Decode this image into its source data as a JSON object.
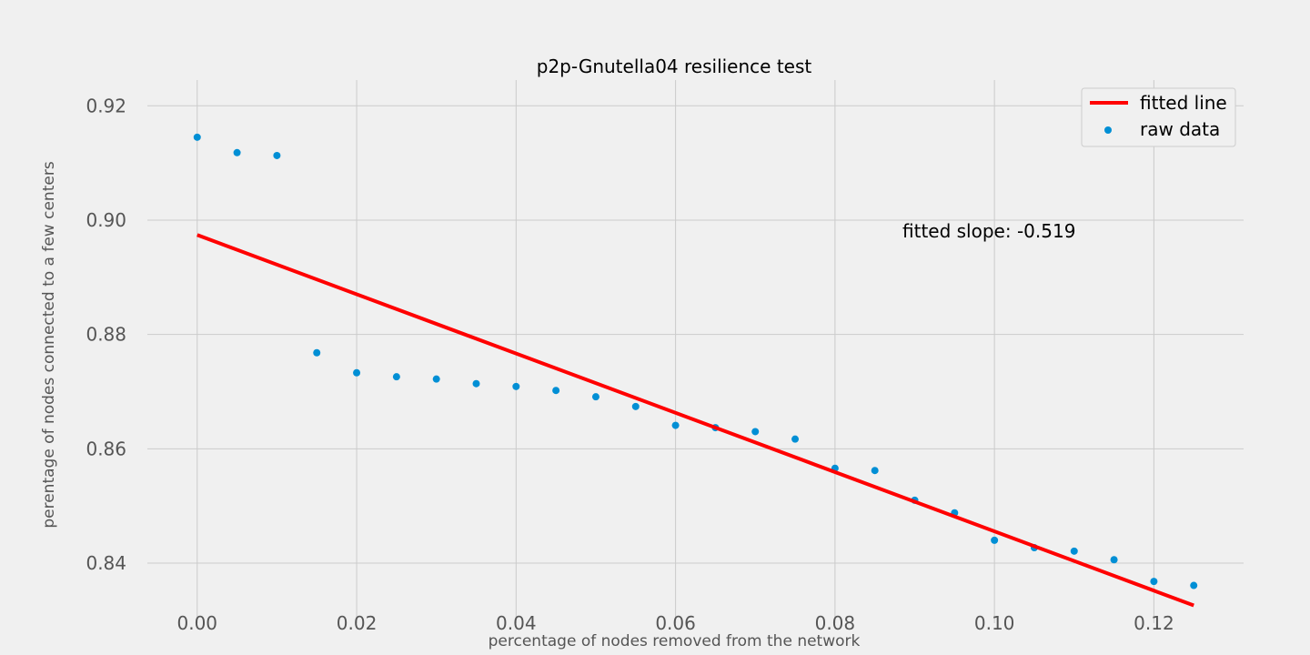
{
  "chart_data": {
    "type": "scatter",
    "title": "p2p-Gnutella04 resilience test",
    "xlabel": "percentage of nodes removed from the network",
    "ylabel": "perentage of nodes connected to a few centers",
    "xlim": [
      -0.00625,
      0.13125
    ],
    "ylim": [
      0.8295,
      0.9245
    ],
    "x_ticks": [
      0.0,
      0.02,
      0.04,
      0.06,
      0.08,
      0.1,
      0.12
    ],
    "x_tick_labels": [
      "0.00",
      "0.02",
      "0.04",
      "0.06",
      "0.08",
      "0.10",
      "0.12"
    ],
    "y_ticks": [
      0.84,
      0.86,
      0.88,
      0.9,
      0.92
    ],
    "y_tick_labels": [
      "0.84",
      "0.86",
      "0.88",
      "0.90",
      "0.92"
    ],
    "grid": true,
    "legend_position": "top-right",
    "annotation": "fitted slope: -0.519",
    "series": [
      {
        "name": "fitted line",
        "kind": "line",
        "color": "#ff0000",
        "x": [
          0.0,
          0.125
        ],
        "y": [
          0.8974,
          0.8326
        ]
      },
      {
        "name": "raw data",
        "kind": "scatter",
        "color": "#008fd5",
        "x": [
          0.0,
          0.005,
          0.01,
          0.015,
          0.02,
          0.025,
          0.03,
          0.035,
          0.04,
          0.045,
          0.05,
          0.055,
          0.06,
          0.065,
          0.07,
          0.075,
          0.08,
          0.085,
          0.09,
          0.095,
          0.1,
          0.105,
          0.11,
          0.115,
          0.12,
          0.125
        ],
        "y": [
          0.9145,
          0.9118,
          0.9113,
          0.8768,
          0.8733,
          0.8726,
          0.8722,
          0.8714,
          0.8709,
          0.8702,
          0.8691,
          0.8674,
          0.8641,
          0.8637,
          0.863,
          0.8617,
          0.8566,
          0.8562,
          0.851,
          0.8488,
          0.844,
          0.8427,
          0.8421,
          0.8406,
          0.8368,
          0.8361
        ]
      }
    ]
  }
}
